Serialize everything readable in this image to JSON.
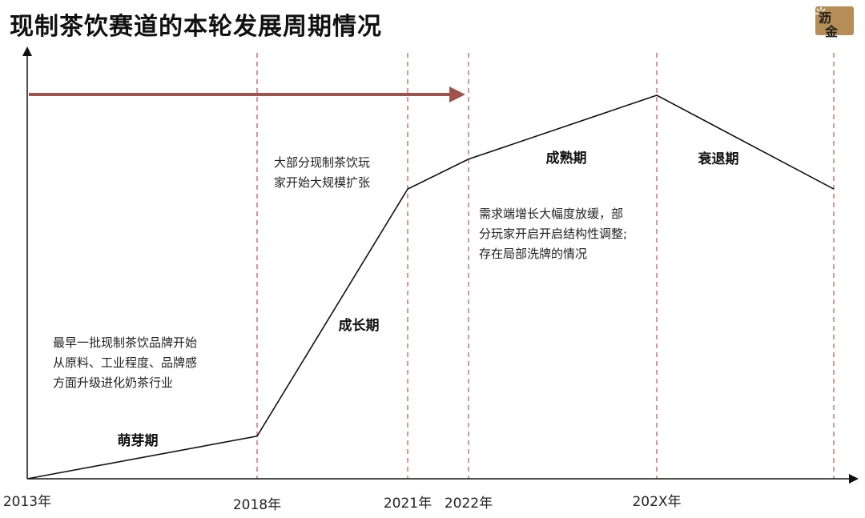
{
  "title": "现制茶饮赛道的本轮发展周期情况",
  "logo": {
    "line1": "沥",
    "line2": "金",
    "icon": "sparkle-icon",
    "color": "#b58d56"
  },
  "colors": {
    "line": "#111111",
    "divider": "#c0504d",
    "arrow": "#a0524b",
    "axis": "#111111"
  },
  "chart_data": {
    "type": "line",
    "x": [
      "2013年",
      "2018年",
      "2021年",
      "2022年",
      "202X年",
      ""
    ],
    "series": [
      {
        "values": [
          0,
          0.1,
          0.68,
          0.75,
          0.9,
          0.68
        ]
      }
    ],
    "dividers": [
      "2018年",
      "2021年",
      "2022年",
      "202X年",
      ""
    ],
    "arrow": {
      "from": "2013年",
      "to": "2022年"
    },
    "stages": [
      {
        "label": "萌芽期"
      },
      {
        "label": "成长期"
      },
      {
        "label": "成熟期"
      },
      {
        "label": "衰退期"
      }
    ],
    "annotations": [
      {
        "text": "最早一批现制茶饮品牌开始\n从原料、工业程度、品牌感\n方面升级进化奶茶行业"
      },
      {
        "text": "大部分现制茶饮玩\n家开始大规模扩张"
      },
      {
        "text": "需求端增长大幅度放缓，部\n分玩家开启开启结构性调整;\n存在局部洗牌的情况"
      }
    ],
    "grid": false
  }
}
